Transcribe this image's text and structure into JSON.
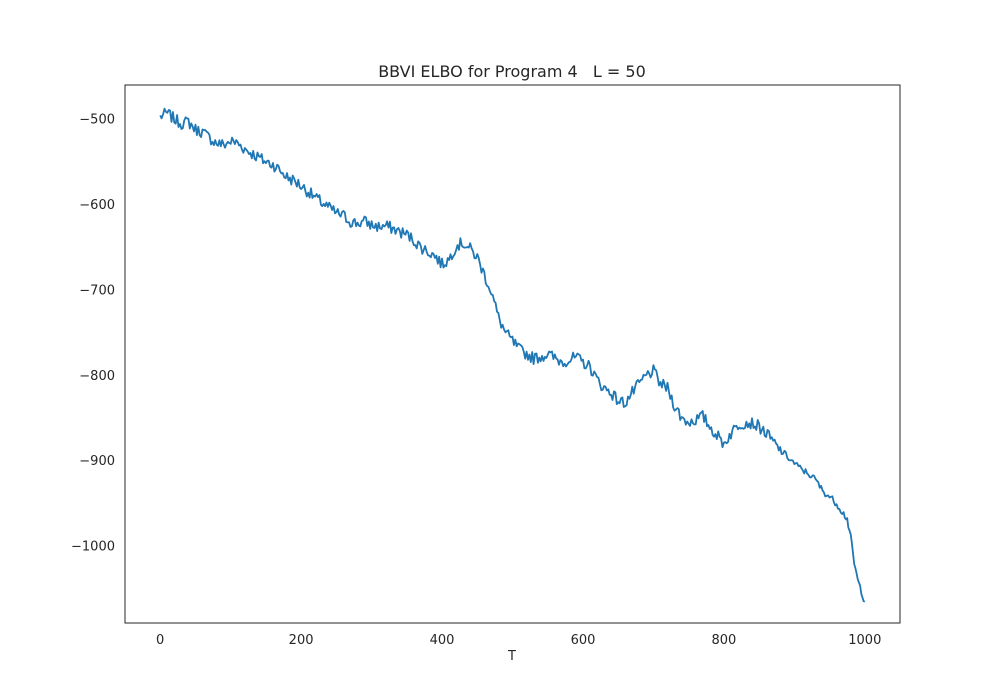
{
  "chart_data": {
    "type": "line",
    "title": "BBVI ELBO for Program 4   L = 50",
    "xlabel": "T",
    "ylabel": "",
    "xlim": [
      -50,
      1050
    ],
    "ylim": [
      -1090,
      -460
    ],
    "xticks": [
      0,
      200,
      400,
      600,
      800,
      1000
    ],
    "yticks": [
      -500,
      -600,
      -700,
      -800,
      -900,
      -1000
    ],
    "grid": false,
    "legend": null,
    "series": [
      {
        "color": "#1f77b4",
        "x": [
          0,
          10,
          20,
          30,
          40,
          50,
          60,
          70,
          80,
          90,
          100,
          110,
          120,
          130,
          140,
          150,
          160,
          170,
          180,
          190,
          200,
          210,
          220,
          230,
          240,
          250,
          260,
          270,
          280,
          290,
          300,
          310,
          320,
          330,
          340,
          350,
          360,
          370,
          380,
          390,
          400,
          410,
          420,
          430,
          440,
          450,
          460,
          470,
          480,
          490,
          500,
          510,
          520,
          530,
          540,
          550,
          560,
          570,
          580,
          590,
          600,
          610,
          620,
          630,
          640,
          650,
          660,
          670,
          680,
          690,
          700,
          710,
          720,
          730,
          740,
          750,
          760,
          770,
          780,
          790,
          800,
          810,
          820,
          830,
          840,
          850,
          860,
          870,
          880,
          890,
          900,
          910,
          920,
          930,
          940,
          950,
          960,
          970,
          975,
          980,
          985,
          990,
          995,
          1000
        ],
        "values": [
          -497,
          -493,
          -500,
          -505,
          -503,
          -512,
          -515,
          -522,
          -528,
          -530,
          -526,
          -528,
          -535,
          -540,
          -545,
          -550,
          -553,
          -560,
          -568,
          -572,
          -578,
          -585,
          -592,
          -598,
          -604,
          -610,
          -613,
          -620,
          -622,
          -620,
          -624,
          -626,
          -625,
          -628,
          -632,
          -635,
          -642,
          -650,
          -655,
          -660,
          -670,
          -664,
          -648,
          -645,
          -652,
          -662,
          -682,
          -702,
          -732,
          -750,
          -760,
          -770,
          -775,
          -780,
          -778,
          -775,
          -780,
          -784,
          -782,
          -779,
          -785,
          -790,
          -805,
          -815,
          -820,
          -830,
          -832,
          -820,
          -810,
          -800,
          -795,
          -810,
          -815,
          -835,
          -850,
          -855,
          -852,
          -848,
          -860,
          -870,
          -880,
          -868,
          -858,
          -855,
          -856,
          -860,
          -868,
          -878,
          -888,
          -895,
          -903,
          -910,
          -915,
          -922,
          -935,
          -942,
          -950,
          -962,
          -968,
          -990,
          -1020,
          -1040,
          -1052,
          -1065
        ]
      }
    ]
  }
}
